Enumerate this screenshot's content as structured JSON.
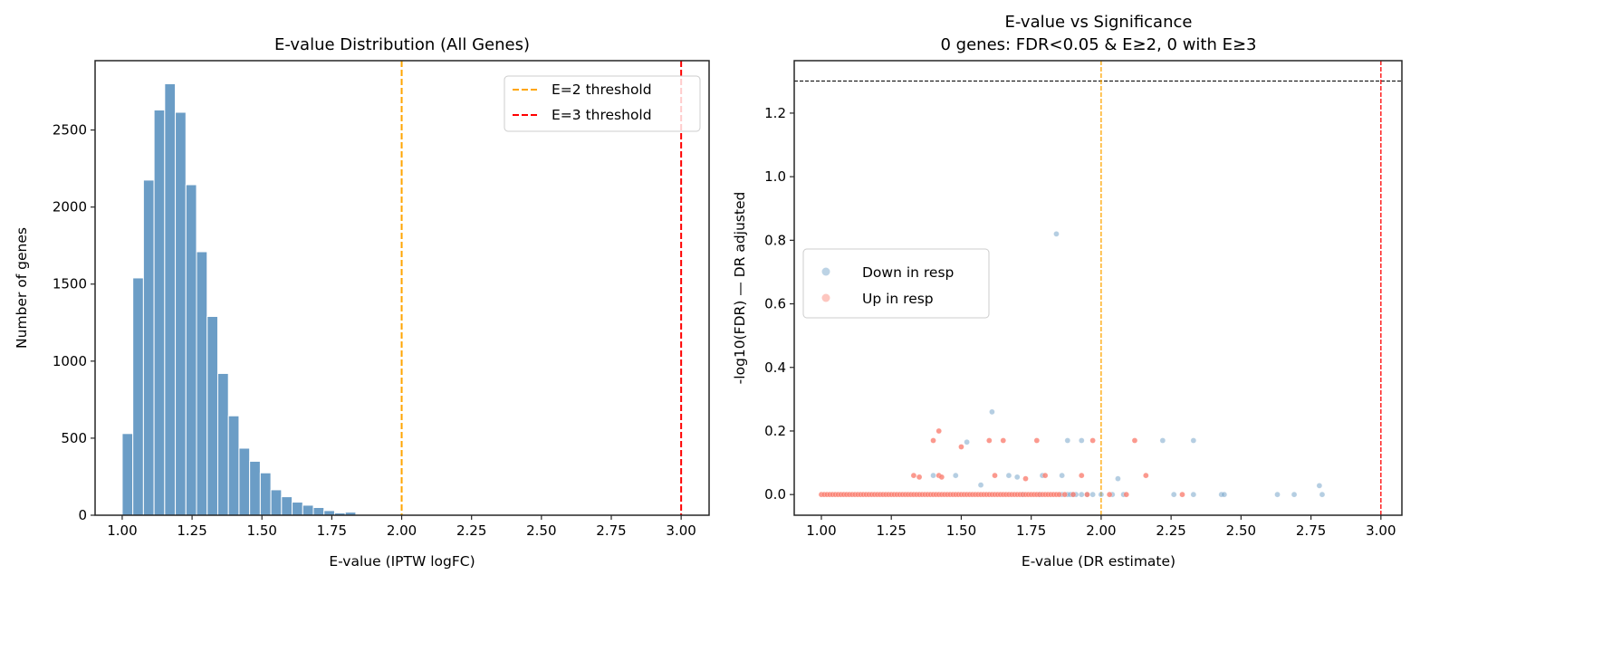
{
  "chart_data": [
    {
      "type": "bar",
      "title": "E-value Distribution (All Genes)",
      "xlabel": "E-value (IPTW logFC)",
      "ylabel": "Number of genes",
      "xlim": [
        0.903,
        3.1
      ],
      "ylim": [
        0,
        2950
      ],
      "xticks": [
        "1.00",
        "1.25",
        "1.50",
        "1.75",
        "2.00",
        "2.25",
        "2.50",
        "2.75",
        "3.00"
      ],
      "yticks": [
        "0",
        "500",
        "1000",
        "1500",
        "2000",
        "2500"
      ],
      "bin_start": 1.0,
      "bin_width": 0.038,
      "values": [
        530,
        1540,
        2175,
        2630,
        2800,
        2615,
        2145,
        1710,
        1290,
        920,
        645,
        435,
        350,
        275,
        165,
        120,
        85,
        65,
        50,
        30,
        15,
        20,
        5
      ],
      "bar_color": "#6b9dc6",
      "vlines": [
        {
          "x": 2,
          "color": "#ffa500",
          "label": "E=2 threshold"
        },
        {
          "x": 3,
          "color": "#ff0000",
          "label": "E=3 threshold"
        }
      ],
      "legend_position": "top-right",
      "grid": false
    },
    {
      "type": "scatter",
      "title": "E-value vs Significance",
      "subtitle": "0 genes: FDR<0.05 & E≥2, 0 with E≥3",
      "xlabel": "E-value (DR estimate)",
      "ylabel": "-log10(FDR) — DR adjusted",
      "xlim": [
        0.903,
        3.075
      ],
      "ylim": [
        -0.065,
        1.365
      ],
      "xticks": [
        "1.00",
        "1.25",
        "1.50",
        "1.75",
        "2.00",
        "2.25",
        "2.50",
        "2.75",
        "3.00"
      ],
      "yticks": [
        "0.0",
        "0.2",
        "0.4",
        "0.6",
        "0.8",
        "1.0",
        "1.2"
      ],
      "hlines": [
        {
          "y": 1.301,
          "color": "#000000"
        }
      ],
      "vlines": [
        {
          "x": 2,
          "color": "#ffa500"
        },
        {
          "x": 3,
          "color": "#ff0000"
        }
      ],
      "legend_position": "center-left",
      "grid": false,
      "series": [
        {
          "name": "Down in resp",
          "color": "#6b9dc6",
          "points": [
            [
              1.84,
              0.82
            ],
            [
              1.61,
              0.26
            ],
            [
              1.52,
              0.165
            ],
            [
              1.88,
              0.17
            ],
            [
              1.93,
              0.17
            ],
            [
              2.22,
              0.17
            ],
            [
              2.33,
              0.17
            ],
            [
              2.78,
              0.028
            ],
            [
              1.79,
              0.06
            ],
            [
              1.48,
              0.06
            ],
            [
              1.4,
              0.06
            ],
            [
              1.67,
              0.06
            ],
            [
              1.7,
              0.055
            ],
            [
              2.06,
              0.05
            ],
            [
              1.86,
              0.06
            ],
            [
              1.57,
              0.03
            ],
            [
              1.72,
              0
            ],
            [
              1.78,
              0
            ],
            [
              1.86,
              0
            ],
            [
              1.88,
              0
            ],
            [
              1.89,
              0
            ],
            [
              1.9,
              0
            ],
            [
              1.91,
              0
            ],
            [
              1.93,
              0
            ],
            [
              1.95,
              0
            ],
            [
              1.97,
              0
            ],
            [
              2.0,
              0
            ],
            [
              2.04,
              0
            ],
            [
              2.08,
              0
            ],
            [
              2.26,
              0
            ],
            [
              2.33,
              0
            ],
            [
              2.43,
              0
            ],
            [
              2.44,
              0
            ],
            [
              2.63,
              0
            ],
            [
              2.69,
              0
            ],
            [
              2.79,
              0
            ]
          ]
        },
        {
          "name": "Up in resp",
          "color": "#fa8072",
          "points": [
            [
              1.42,
              0.2
            ],
            [
              1.4,
              0.17
            ],
            [
              1.5,
              0.15
            ],
            [
              1.6,
              0.17
            ],
            [
              1.65,
              0.17
            ],
            [
              1.77,
              0.17
            ],
            [
              1.97,
              0.17
            ],
            [
              2.12,
              0.17
            ],
            [
              1.33,
              0.06
            ],
            [
              1.35,
              0.055
            ],
            [
              1.42,
              0.06
            ],
            [
              1.43,
              0.055
            ],
            [
              1.62,
              0.06
            ],
            [
              1.8,
              0.06
            ],
            [
              1.93,
              0.06
            ],
            [
              2.16,
              0.06
            ],
            [
              1.73,
              0.05
            ],
            [
              1.0,
              0
            ],
            [
              1.01,
              0
            ],
            [
              1.02,
              0
            ],
            [
              1.03,
              0
            ],
            [
              1.04,
              0
            ],
            [
              1.05,
              0
            ],
            [
              1.06,
              0
            ],
            [
              1.07,
              0
            ],
            [
              1.08,
              0
            ],
            [
              1.09,
              0
            ],
            [
              1.1,
              0
            ],
            [
              1.11,
              0
            ],
            [
              1.12,
              0
            ],
            [
              1.13,
              0
            ],
            [
              1.14,
              0
            ],
            [
              1.15,
              0
            ],
            [
              1.16,
              0
            ],
            [
              1.17,
              0
            ],
            [
              1.18,
              0
            ],
            [
              1.19,
              0
            ],
            [
              1.2,
              0
            ],
            [
              1.21,
              0
            ],
            [
              1.22,
              0
            ],
            [
              1.23,
              0
            ],
            [
              1.24,
              0
            ],
            [
              1.25,
              0
            ],
            [
              1.26,
              0
            ],
            [
              1.27,
              0
            ],
            [
              1.28,
              0
            ],
            [
              1.29,
              0
            ],
            [
              1.3,
              0
            ],
            [
              1.31,
              0
            ],
            [
              1.32,
              0
            ],
            [
              1.33,
              0
            ],
            [
              1.34,
              0
            ],
            [
              1.35,
              0
            ],
            [
              1.36,
              0
            ],
            [
              1.37,
              0
            ],
            [
              1.38,
              0
            ],
            [
              1.39,
              0
            ],
            [
              1.4,
              0
            ],
            [
              1.41,
              0
            ],
            [
              1.42,
              0
            ],
            [
              1.43,
              0
            ],
            [
              1.44,
              0
            ],
            [
              1.45,
              0
            ],
            [
              1.46,
              0
            ],
            [
              1.47,
              0
            ],
            [
              1.48,
              0
            ],
            [
              1.49,
              0
            ],
            [
              1.5,
              0
            ],
            [
              1.51,
              0
            ],
            [
              1.52,
              0
            ],
            [
              1.53,
              0
            ],
            [
              1.54,
              0
            ],
            [
              1.55,
              0
            ],
            [
              1.56,
              0
            ],
            [
              1.57,
              0
            ],
            [
              1.58,
              0
            ],
            [
              1.59,
              0
            ],
            [
              1.6,
              0
            ],
            [
              1.61,
              0
            ],
            [
              1.62,
              0
            ],
            [
              1.63,
              0
            ],
            [
              1.64,
              0
            ],
            [
              1.65,
              0
            ],
            [
              1.66,
              0
            ],
            [
              1.67,
              0
            ],
            [
              1.68,
              0
            ],
            [
              1.69,
              0
            ],
            [
              1.7,
              0
            ],
            [
              1.71,
              0
            ],
            [
              1.72,
              0
            ],
            [
              1.73,
              0
            ],
            [
              1.74,
              0
            ],
            [
              1.75,
              0
            ],
            [
              1.76,
              0
            ],
            [
              1.77,
              0
            ],
            [
              1.78,
              0
            ],
            [
              1.79,
              0
            ],
            [
              1.8,
              0
            ],
            [
              1.81,
              0
            ],
            [
              1.82,
              0
            ],
            [
              1.83,
              0
            ],
            [
              1.84,
              0
            ],
            [
              1.85,
              0
            ],
            [
              1.87,
              0
            ],
            [
              1.9,
              0
            ],
            [
              1.95,
              0
            ],
            [
              2.03,
              0
            ],
            [
              2.09,
              0
            ],
            [
              2.29,
              0
            ]
          ]
        }
      ]
    }
  ]
}
